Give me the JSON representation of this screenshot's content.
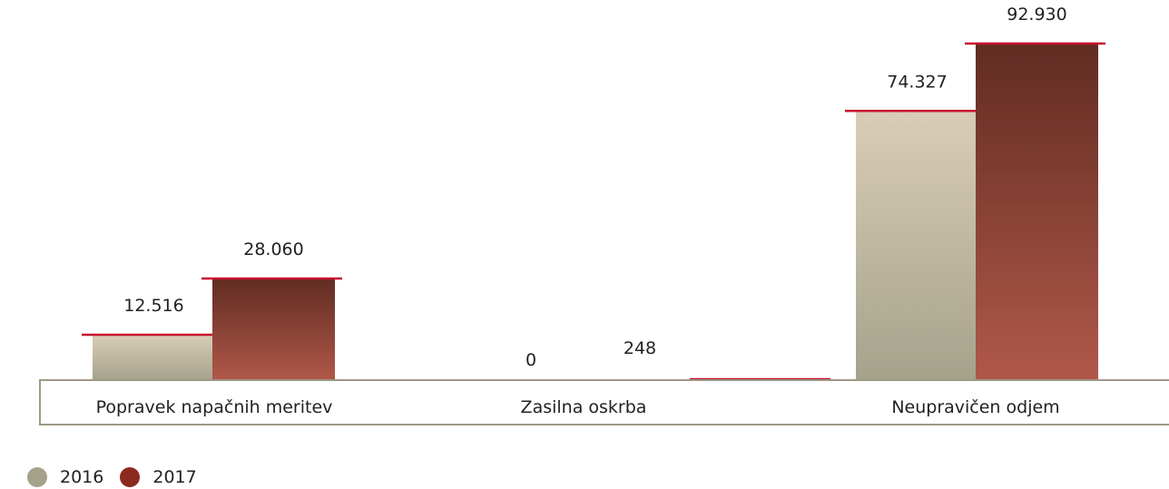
{
  "chart_data": {
    "type": "bar",
    "categories": [
      "Popravek napačnih meritev",
      "Zasilna oskrba",
      "Neupravičen odjem"
    ],
    "series": [
      {
        "name": "2016",
        "values": [
          12516,
          0,
          74327
        ],
        "labels": [
          "12.516",
          "0",
          "74.327"
        ],
        "color_top": "#d9cdb6",
        "color_bottom": "#a5a28b"
      },
      {
        "name": "2017",
        "values": [
          28060,
          248,
          92930
        ],
        "labels": [
          "28.060",
          "248",
          "92.930"
        ],
        "color_top": "#612c22",
        "color_bottom": "#b0584a"
      }
    ],
    "ylim": [
      0,
      92930
    ],
    "xlabel": "",
    "ylabel": "",
    "legend_position": "bottom-left",
    "cap_color": "#c8102e",
    "axis_color": "#9e9886"
  }
}
